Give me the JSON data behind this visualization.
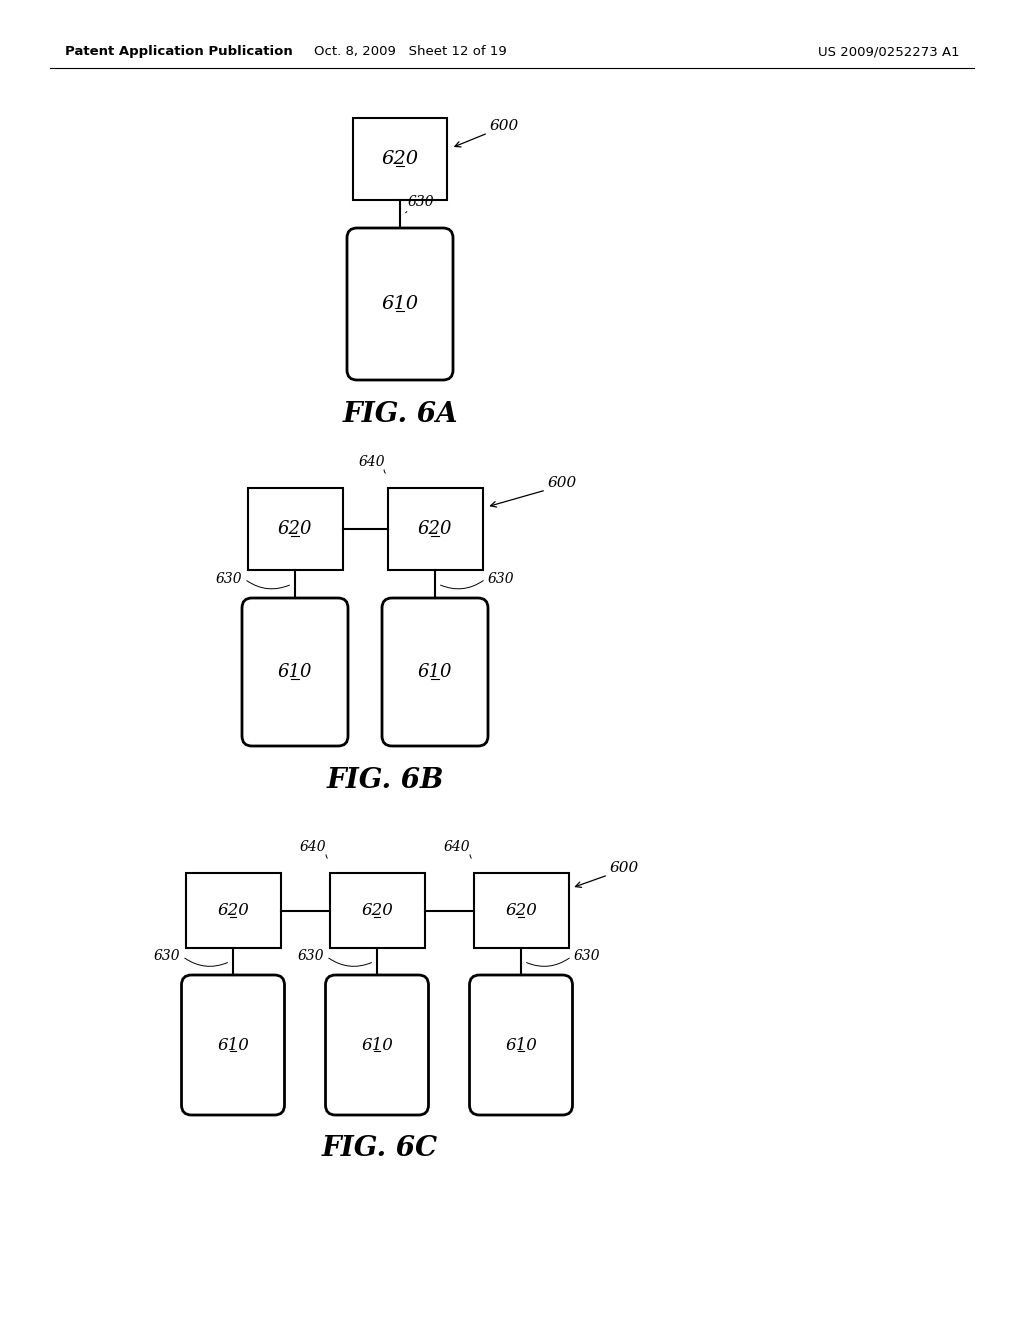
{
  "background_color": "#ffffff",
  "header_left": "Patent Application Publication",
  "header_mid": "Oct. 8, 2009   Sheet 12 of 19",
  "header_right": "US 2009/0252273 A1",
  "label_600": "600",
  "label_620": "620",
  "label_610": "610",
  "label_630": "630",
  "label_640": "640",
  "title_6a": "FIG. 6A",
  "title_6b": "FIG. 6B",
  "title_6c": "FIG. 6C"
}
